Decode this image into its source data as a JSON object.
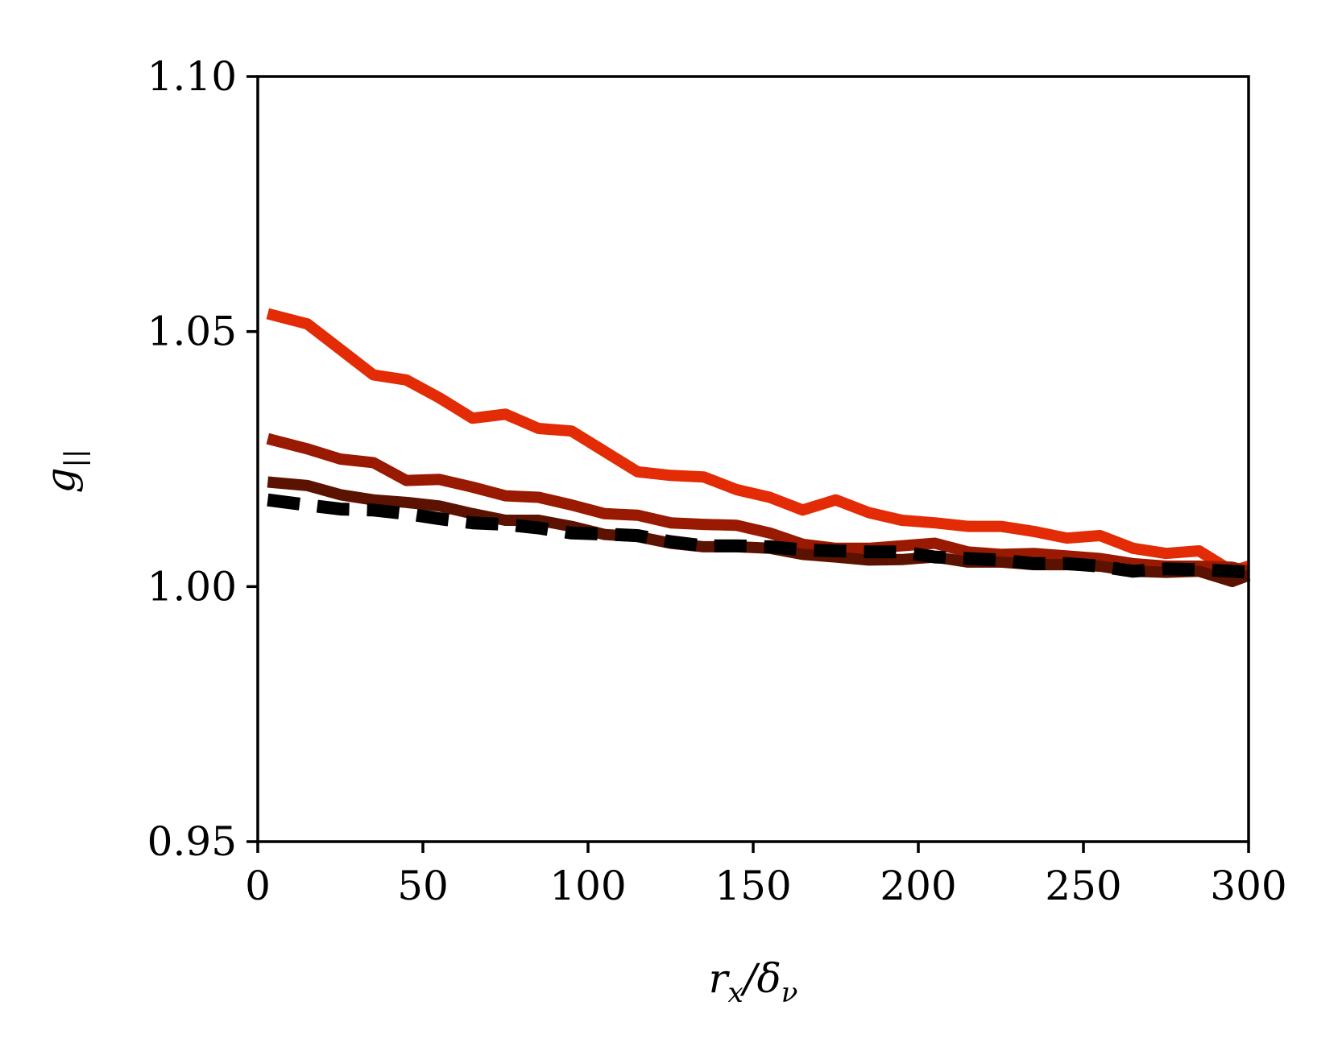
{
  "chart_data": {
    "type": "line",
    "title": "",
    "xlabel": "r_x/δ_ν",
    "ylabel": "g_||",
    "xlim": [
      0,
      300
    ],
    "ylim": [
      0.95,
      1.1
    ],
    "xticks": [
      "0",
      "50",
      "100",
      "150",
      "200",
      "250",
      "300"
    ],
    "yticks": [
      "0.95",
      "1.00",
      "1.05",
      "1.10"
    ],
    "grid": false,
    "legend": "none",
    "x": [
      3,
      15,
      25,
      35,
      45,
      55,
      65,
      75,
      85,
      95,
      105,
      115,
      125,
      135,
      145,
      155,
      165,
      175,
      185,
      195,
      205,
      215,
      225,
      235,
      245,
      255,
      265,
      275,
      285,
      295,
      300
    ],
    "series": [
      {
        "color": "#e32b05",
        "style": "solid",
        "values": [
          1.0535,
          1.0515,
          1.0465,
          1.0415,
          1.0405,
          1.037,
          1.033,
          1.0338,
          1.031,
          1.0305,
          1.0265,
          1.0225,
          1.0218,
          1.0215,
          1.019,
          1.0175,
          1.015,
          1.017,
          1.0145,
          1.013,
          1.0125,
          1.0118,
          1.0118,
          1.0108,
          1.0095,
          1.01,
          1.0075,
          1.0065,
          1.007,
          1.003,
          1.004
        ]
      },
      {
        "color": "#991a00",
        "style": "solid",
        "values": [
          1.029,
          1.027,
          1.025,
          1.0243,
          1.0208,
          1.021,
          1.0195,
          1.0178,
          1.0175,
          1.016,
          1.0143,
          1.014,
          1.0125,
          1.0122,
          1.012,
          1.0105,
          1.0083,
          1.0075,
          1.0075,
          1.008,
          1.0085,
          1.0068,
          1.0063,
          1.0065,
          1.006,
          1.0055,
          1.0045,
          1.004,
          1.004,
          1.0038,
          1.003
        ]
      },
      {
        "color": "#5c1200",
        "style": "solid",
        "values": [
          1.0205,
          1.0198,
          1.018,
          1.017,
          1.0165,
          1.0158,
          1.0143,
          1.013,
          1.013,
          1.0118,
          1.0102,
          1.0098,
          1.0085,
          1.0078,
          1.0078,
          1.0075,
          1.0063,
          1.0058,
          1.0052,
          1.0053,
          1.0058,
          1.0048,
          1.0048,
          1.0043,
          1.0043,
          1.004,
          1.003,
          1.0028,
          1.003,
          1.001,
          1.0022
        ]
      },
      {
        "color": "#000000",
        "style": "dashed",
        "values": [
          1.017,
          1.016,
          1.0152,
          1.015,
          1.0143,
          1.0133,
          1.0125,
          1.0122,
          1.0115,
          1.0105,
          1.0103,
          1.01,
          1.0088,
          1.008,
          1.008,
          1.0078,
          1.0072,
          1.007,
          1.0068,
          1.0068,
          1.0058,
          1.0055,
          1.0052,
          1.0045,
          1.0045,
          1.004,
          1.003,
          1.0035,
          1.0033,
          1.003,
          1.0028
        ]
      }
    ]
  }
}
